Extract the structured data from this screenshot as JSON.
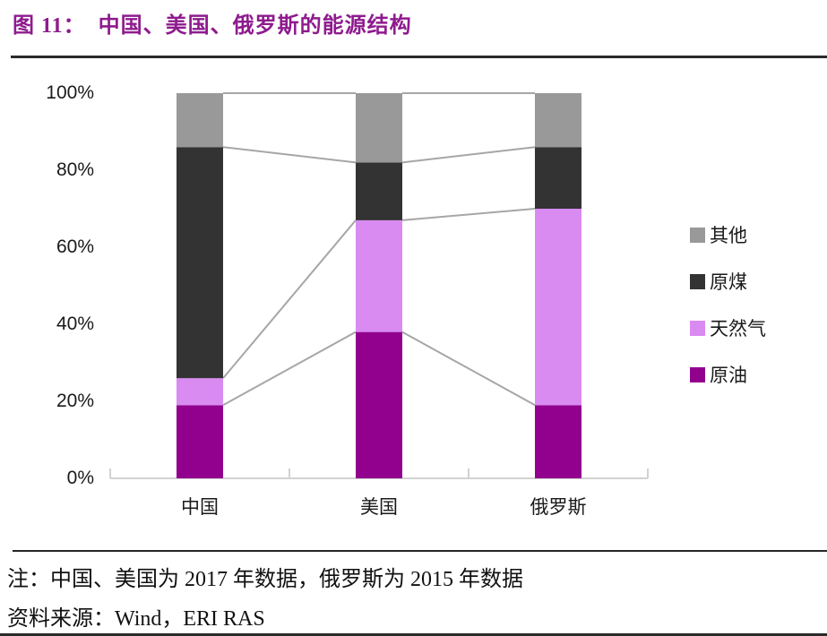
{
  "figure": {
    "title": "图 11：  中国、美国、俄罗斯的能源结构",
    "title_color": "#8E1B8E"
  },
  "chart_data": {
    "type": "bar",
    "subtype": "100%-stacked-column-with-series-lines",
    "categories": [
      "中国",
      "美国",
      "俄罗斯"
    ],
    "series": [
      {
        "name": "原油",
        "color": "#92008E",
        "values": [
          19,
          38,
          19
        ]
      },
      {
        "name": "天然气",
        "color": "#D98BF2",
        "values": [
          7,
          29,
          51
        ]
      },
      {
        "name": "原煤",
        "color": "#333333",
        "values": [
          60,
          15,
          16
        ]
      },
      {
        "name": "其他",
        "color": "#999999",
        "values": [
          14,
          18,
          14
        ]
      }
    ],
    "cumulative_tops_pct": {
      "中国": [
        19,
        26,
        86,
        100
      ],
      "美国": [
        38,
        67,
        82,
        100
      ],
      "俄罗斯": [
        19,
        70,
        86,
        100
      ]
    },
    "y_ticks": [
      "100%",
      "80%",
      "60%",
      "40%",
      "20%",
      "0%"
    ],
    "ylim": [
      0,
      100
    ],
    "grid": "off",
    "legend_position": "right",
    "legend_order_top_to_bottom": [
      "其他",
      "原煤",
      "天然气",
      "原油"
    ],
    "connector_line_color": "#A6A6A6",
    "axis_line_color": "#D2D2D2"
  },
  "notes": {
    "note": "注：中国、美国为 2017 年数据，俄罗斯为 2015 年数据",
    "source": "资料来源：Wind，ERI RAS"
  }
}
